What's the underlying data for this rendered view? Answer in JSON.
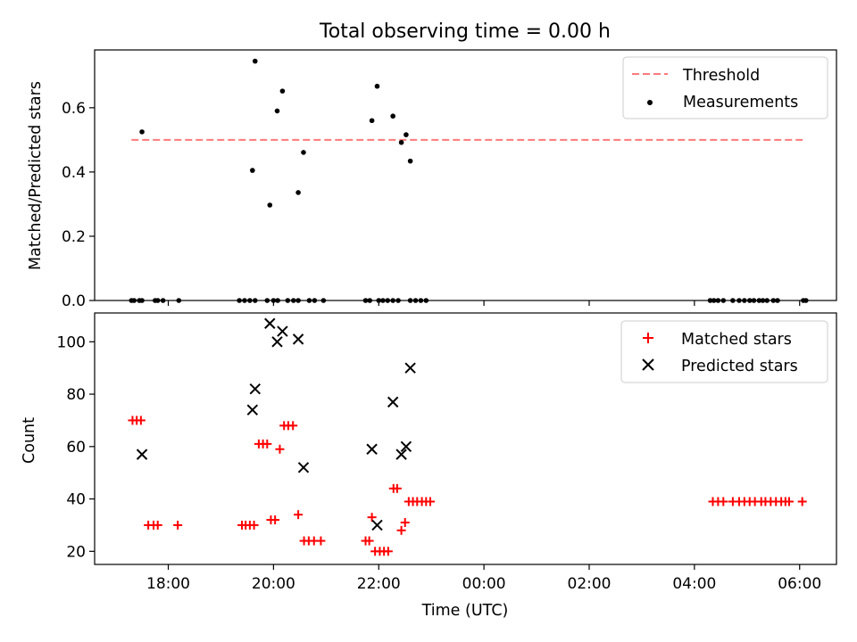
{
  "chart_data": [
    {
      "type": "scatter",
      "title": "Total observing time = 0.00 h",
      "ylabel": "Matched/Predicted stars",
      "xlabel": "",
      "xlim_hours": [
        16.6,
        30.7
      ],
      "ylim": [
        0,
        0.78
      ],
      "yticks": [
        0.0,
        0.2,
        0.4,
        0.6
      ],
      "ytick_labels": [
        "0.0",
        "0.2",
        "0.4",
        "0.6"
      ],
      "xticks": [
        18,
        20,
        22,
        24,
        26,
        28,
        30
      ],
      "legend": {
        "placement": "top-right",
        "entries": [
          "Threshold",
          "Measurements"
        ]
      },
      "threshold": {
        "name": "Threshold",
        "value": 0.5,
        "x_range": [
          17.3,
          30.1
        ],
        "color": "#ff7a7a"
      },
      "series": [
        {
          "name": "Measurements",
          "color": "#000000",
          "x": [
            17.5,
            19.6,
            19.65,
            19.93,
            20.07,
            20.17,
            20.47,
            20.57,
            21.87,
            21.97,
            22.27,
            22.43,
            22.52,
            22.6,
            17.3,
            17.35,
            17.45,
            17.5,
            17.75,
            17.8,
            17.9,
            18.2,
            19.35,
            19.45,
            19.55,
            19.65,
            19.88,
            20.0,
            20.08,
            20.27,
            20.38,
            20.47,
            20.68,
            20.78,
            20.95,
            21.75,
            21.83,
            22.0,
            22.08,
            22.17,
            22.27,
            22.37,
            22.6,
            22.7,
            22.8,
            22.9,
            28.3,
            28.37,
            28.45,
            28.55,
            28.73,
            28.85,
            28.95,
            29.05,
            29.13,
            29.23,
            29.3,
            29.38,
            29.5,
            29.58,
            30.07,
            30.12
          ],
          "y": [
            0.525,
            0.405,
            0.745,
            0.297,
            0.59,
            0.652,
            0.336,
            0.461,
            0.56,
            0.667,
            0.574,
            0.492,
            0.516,
            0.434,
            0,
            0,
            0,
            0,
            0,
            0,
            0,
            0,
            0,
            0,
            0,
            0,
            0,
            0,
            0,
            0,
            0,
            0,
            0,
            0,
            0,
            0,
            0,
            0,
            0,
            0,
            0,
            0,
            0,
            0,
            0,
            0,
            0,
            0,
            0,
            0,
            0,
            0,
            0,
            0,
            0,
            0,
            0,
            0,
            0,
            0,
            0,
            0
          ]
        }
      ]
    },
    {
      "type": "scatter",
      "title": "",
      "ylabel": "Count",
      "xlabel": "Time (UTC)",
      "xlim_hours": [
        16.6,
        30.7
      ],
      "ylim": [
        15,
        111
      ],
      "yticks": [
        20,
        40,
        60,
        80,
        100
      ],
      "ytick_labels": [
        "20",
        "40",
        "60",
        "80",
        "100"
      ],
      "xticks": [
        18,
        20,
        22,
        24,
        26,
        28,
        30
      ],
      "xtick_labels": [
        "18:00",
        "20:00",
        "22:00",
        "00:00",
        "02:00",
        "04:00",
        "06:00"
      ],
      "legend": {
        "placement": "top-right",
        "entries": [
          "Matched stars",
          "Predicted stars"
        ]
      },
      "series": [
        {
          "name": "Matched stars",
          "marker": "plus",
          "color": "#ff0000",
          "x": [
            17.32,
            17.4,
            17.48,
            17.62,
            17.72,
            17.8,
            18.18,
            19.4,
            19.47,
            19.55,
            19.63,
            19.72,
            19.8,
            19.88,
            19.95,
            20.03,
            20.12,
            20.2,
            20.28,
            20.37,
            20.47,
            20.58,
            20.67,
            20.77,
            20.9,
            21.75,
            21.82,
            21.87,
            21.93,
            22.02,
            22.1,
            22.18,
            22.28,
            22.35,
            22.43,
            22.5,
            22.57,
            22.65,
            22.73,
            22.82,
            22.9,
            22.98,
            28.35,
            28.45,
            28.55,
            28.73,
            28.85,
            28.95,
            29.05,
            29.15,
            29.27,
            29.35,
            29.45,
            29.55,
            29.65,
            29.73,
            29.8,
            30.05
          ],
          "y": [
            70,
            70,
            70,
            30,
            30,
            30,
            30,
            30,
            30,
            30,
            30,
            61,
            61,
            61,
            32,
            32,
            59,
            68,
            68,
            68,
            34,
            24,
            24,
            24,
            24,
            24,
            24,
            33,
            20,
            20,
            20,
            20,
            44,
            44,
            28,
            31,
            39,
            39,
            39,
            39,
            39,
            39,
            39,
            39,
            39,
            39,
            39,
            39,
            39,
            39,
            39,
            39,
            39,
            39,
            39,
            39,
            39,
            39
          ]
        },
        {
          "name": "Predicted stars",
          "marker": "x",
          "color": "#000000",
          "x": [
            17.5,
            19.6,
            19.65,
            19.93,
            20.07,
            20.17,
            20.47,
            20.57,
            21.87,
            21.97,
            22.27,
            22.43,
            22.52,
            22.6
          ],
          "y": [
            57,
            74,
            82,
            107,
            100,
            104,
            101,
            52,
            59,
            30,
            77,
            57,
            60,
            90
          ]
        }
      ]
    }
  ]
}
